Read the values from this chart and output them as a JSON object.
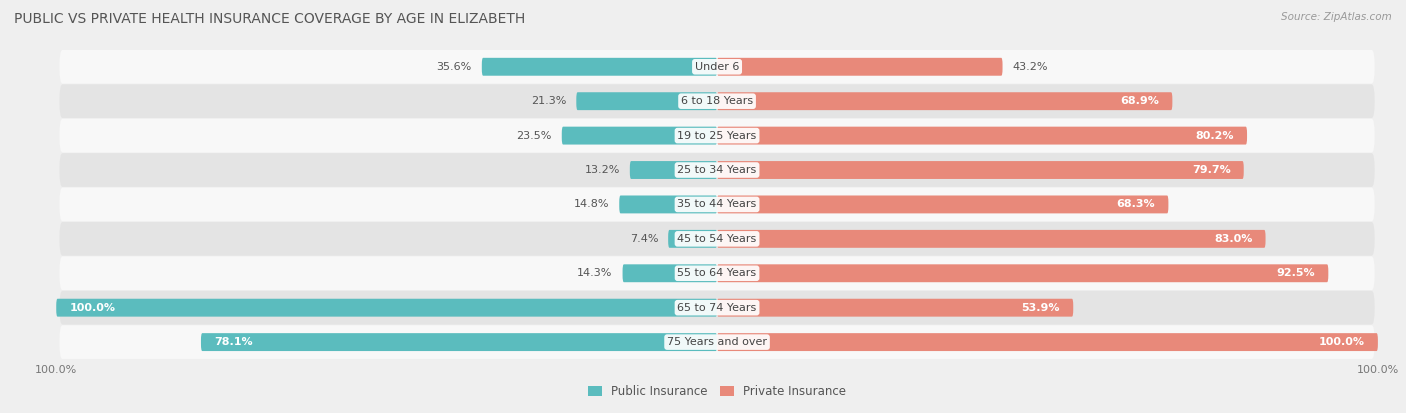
{
  "title": "PUBLIC VS PRIVATE HEALTH INSURANCE COVERAGE BY AGE IN ELIZABETH",
  "source": "Source: ZipAtlas.com",
  "categories": [
    "Under 6",
    "6 to 18 Years",
    "19 to 25 Years",
    "25 to 34 Years",
    "35 to 44 Years",
    "45 to 54 Years",
    "55 to 64 Years",
    "65 to 74 Years",
    "75 Years and over"
  ],
  "public_values": [
    35.6,
    21.3,
    23.5,
    13.2,
    14.8,
    7.4,
    14.3,
    100.0,
    78.1
  ],
  "private_values": [
    43.2,
    68.9,
    80.2,
    79.7,
    68.3,
    83.0,
    92.5,
    53.9,
    100.0
  ],
  "public_color": "#5bbcbe",
  "private_color": "#e8897a",
  "bg_color": "#efefef",
  "row_bg_light": "#f8f8f8",
  "row_bg_dark": "#e4e4e4",
  "bar_height": 0.52,
  "max_value": 100.0,
  "title_fontsize": 10,
  "label_fontsize": 8,
  "axis_fontsize": 8,
  "legend_fontsize": 8.5,
  "inside_label_threshold": 50
}
